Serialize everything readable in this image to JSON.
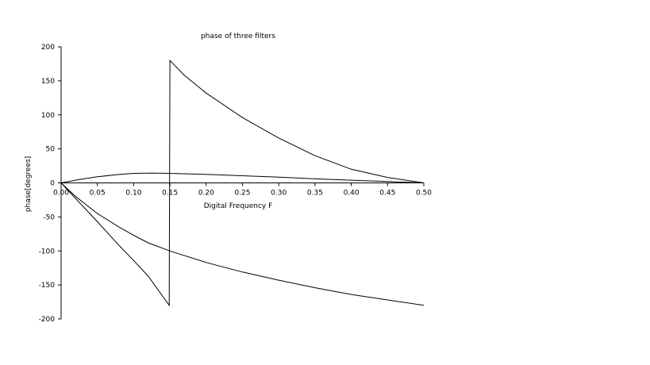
{
  "chart_data": {
    "type": "line",
    "title": "phase of three filters",
    "xlabel": "Digital Frequency F",
    "ylabel": "phase[degrees]",
    "xlim": [
      0,
      0.5
    ],
    "ylim": [
      -200,
      200
    ],
    "xticks": [
      "0.00",
      "0.05",
      "0.10",
      "0.15",
      "0.20",
      "0.25",
      "0.30",
      "0.35",
      "0.40",
      "0.45",
      "0.50"
    ],
    "yticks": [
      "200",
      "150",
      "100",
      "50",
      "0",
      "-50",
      "-100",
      "-150",
      "-200"
    ],
    "grid": false,
    "legend": "none",
    "line_color": "#000000",
    "series": [
      {
        "x": [
          0,
          0.02,
          0.05,
          0.08,
          0.1,
          0.12,
          0.149,
          0.15,
          0.17,
          0.2,
          0.25,
          0.3,
          0.35,
          0.4,
          0.45,
          0.5
        ],
        "y": [
          0,
          -23,
          -57,
          -92,
          -114,
          -137,
          -180,
          180,
          158,
          132,
          96,
          66,
          40,
          20,
          8,
          0
        ]
      },
      {
        "x": [
          0,
          0.02,
          0.05,
          0.08,
          0.1,
          0.12,
          0.15,
          0.2,
          0.25,
          0.3,
          0.35,
          0.4,
          0.45,
          0.5
        ],
        "y": [
          0,
          -20,
          -45,
          -65,
          -77,
          -88,
          -100,
          -117,
          -131,
          -143,
          -154,
          -164,
          -172,
          -180
        ]
      },
      {
        "x": [
          0,
          0.025,
          0.05,
          0.075,
          0.1,
          0.125,
          0.15,
          0.2,
          0.25,
          0.3,
          0.35,
          0.4,
          0.45,
          0.5
        ],
        "y": [
          0,
          5,
          9,
          12,
          14,
          14.5,
          14,
          12.5,
          10.5,
          8.5,
          6,
          4,
          2,
          0
        ]
      }
    ]
  }
}
